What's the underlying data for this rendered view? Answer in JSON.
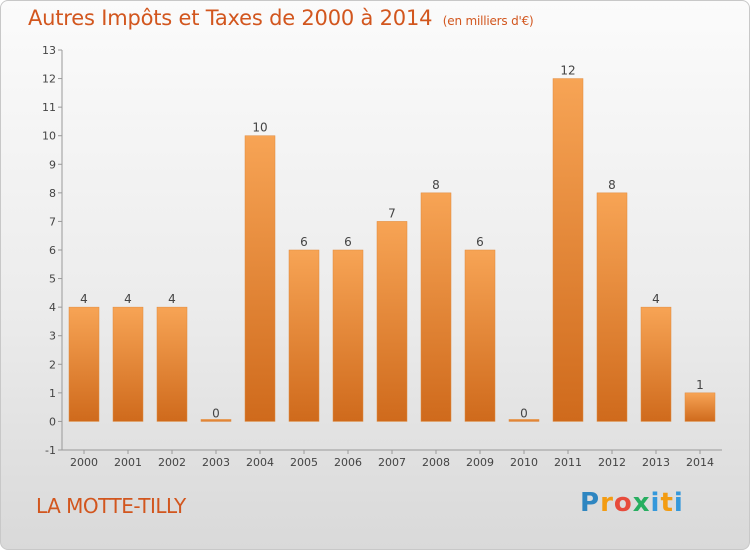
{
  "header": {
    "title": "Autres Impôts et Taxes de 2000 à 2014",
    "unit": "(en milliers d'€)"
  },
  "footer": {
    "commune": "LA MOTTE-TILLY",
    "logo": "Proxiti"
  },
  "colors": {
    "bar_light": "#f7a455",
    "bar_dark": "#cf6a1c",
    "title": "#d2561e"
  },
  "chart_data": {
    "type": "bar",
    "title": "Autres Impôts et Taxes de 2000 à 2014",
    "subtitle": "(en milliers d'€)",
    "categories": [
      "2000",
      "2001",
      "2002",
      "2003",
      "2004",
      "2005",
      "2006",
      "2007",
      "2008",
      "2009",
      "2010",
      "2011",
      "2012",
      "2013",
      "2014"
    ],
    "values": [
      4,
      4,
      4,
      0,
      10,
      6,
      6,
      7,
      8,
      6,
      0,
      12,
      8,
      4,
      1
    ],
    "ylim": [
      -1,
      13
    ],
    "yticks": [
      -1,
      0,
      1,
      2,
      3,
      4,
      5,
      6,
      7,
      8,
      9,
      10,
      11,
      12,
      13
    ],
    "grid": false,
    "data_labels": true
  }
}
